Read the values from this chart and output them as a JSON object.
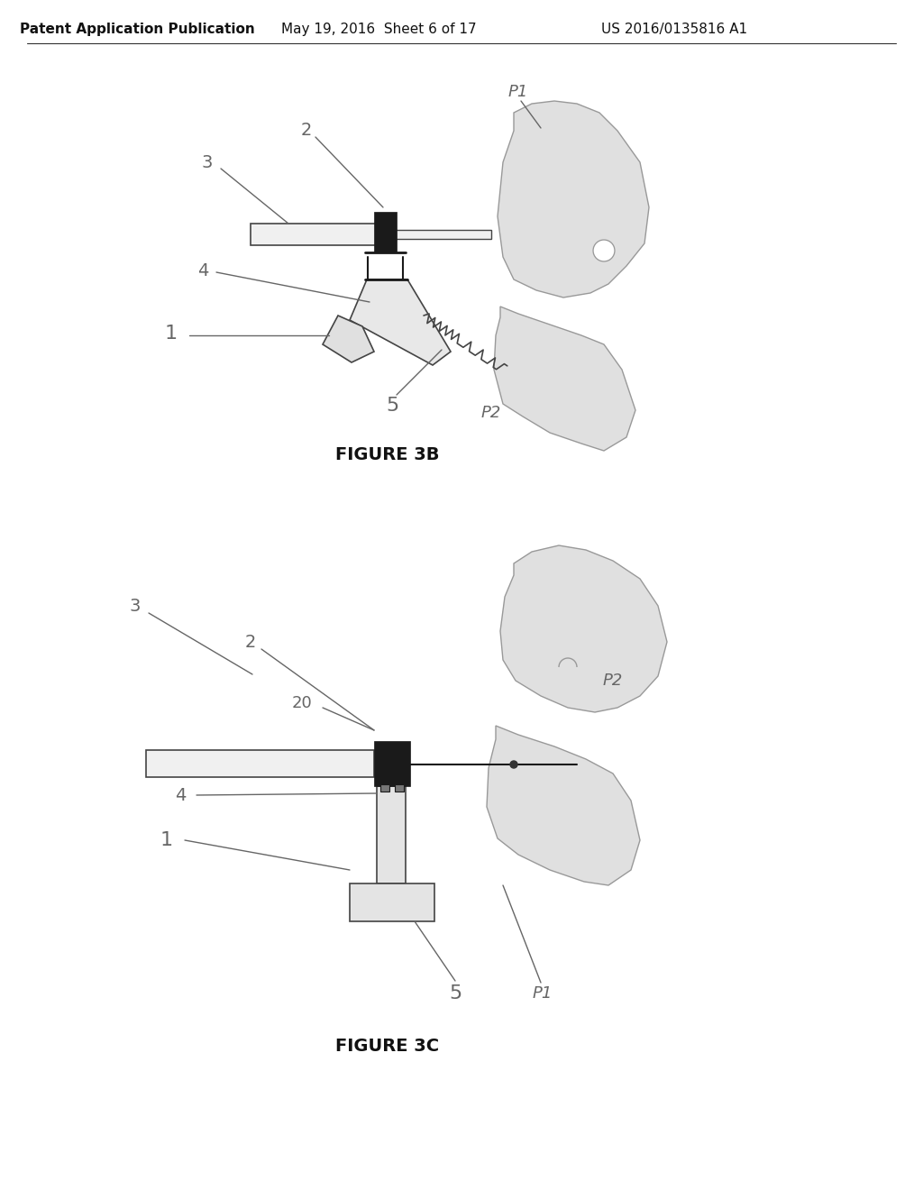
{
  "bg_color": "#ffffff",
  "header_text": "Patent Application Publication",
  "header_date": "May 19, 2016  Sheet 6 of 17",
  "header_patent": "US 2016/0135816 A1",
  "fig3b_label": "FIGURE 3B",
  "fig3c_label": "FIGURE 3C",
  "label_color": "#666666",
  "line_color": "#444444",
  "dark_color": "#1a1a1a",
  "bone_fill": "#e0e0e0",
  "bone_edge": "#999999",
  "device_fill": "#f0f0f0",
  "device_edge": "#444444"
}
